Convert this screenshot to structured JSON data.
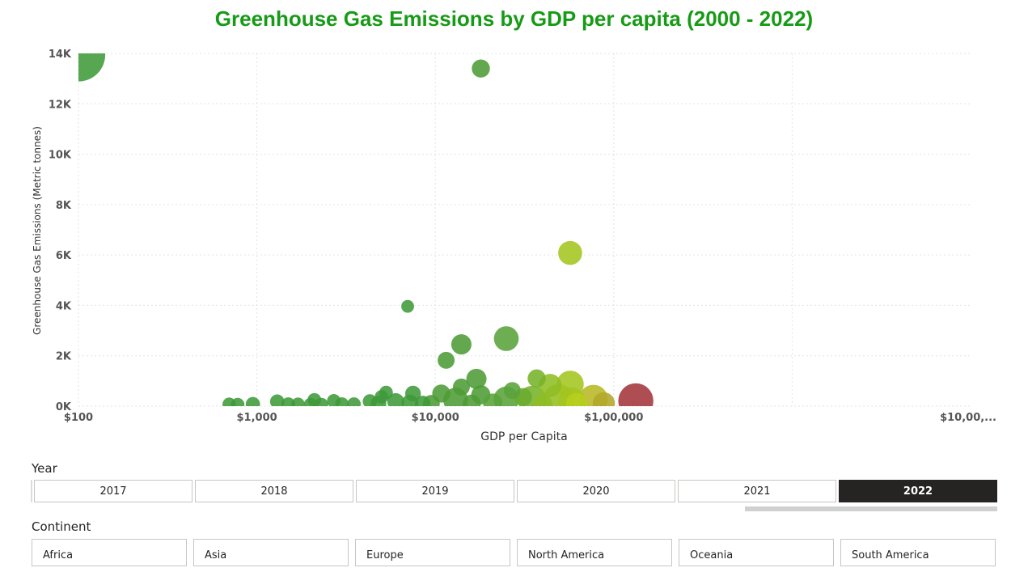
{
  "chart_data": {
    "type": "scatter",
    "title": "Greenhouse Gas Emissions by GDP per capita (2000 - 2022)",
    "xlabel": "GDP per Capita",
    "ylabel": "Greenhouse Gas Emissions (Metric tonnes)",
    "x_scale": "log",
    "xlim": [
      100,
      10000000
    ],
    "ylim": [
      0,
      14000
    ],
    "x_ticks": [
      "$100",
      "$1,000",
      "$10,000",
      "$1,00,000",
      "$10,00,..."
    ],
    "y_ticks": [
      "0K",
      "2K",
      "4K",
      "6K",
      "8K",
      "10K",
      "12K",
      "14K"
    ],
    "grid": true,
    "points": [
      {
        "x": 100,
        "y": 13950,
        "size": 14000,
        "color": "#3f9a3a"
      },
      {
        "x": 18000,
        "y": 13400,
        "size": 1600,
        "color": "#4d9c35"
      },
      {
        "x": 57000,
        "y": 6080,
        "size": 2800,
        "color": "#a4c520"
      },
      {
        "x": 7000,
        "y": 3960,
        "size": 800,
        "color": "#3f9a3a"
      },
      {
        "x": 25000,
        "y": 2680,
        "size": 3000,
        "color": "#5aa33a"
      },
      {
        "x": 14000,
        "y": 2450,
        "size": 2000,
        "color": "#4d9c35"
      },
      {
        "x": 11500,
        "y": 1820,
        "size": 1400,
        "color": "#4d9c35"
      },
      {
        "x": 17000,
        "y": 1080,
        "size": 2000,
        "color": "#4d9c35"
      },
      {
        "x": 37000,
        "y": 1100,
        "size": 1600,
        "color": "#76b32a"
      },
      {
        "x": 57000,
        "y": 870,
        "size": 3600,
        "color": "#a4c520"
      },
      {
        "x": 44000,
        "y": 820,
        "size": 2600,
        "color": "#8fbd25"
      },
      {
        "x": 14000,
        "y": 760,
        "size": 1400,
        "color": "#4d9c35"
      },
      {
        "x": 27000,
        "y": 620,
        "size": 1400,
        "color": "#5aa33a"
      },
      {
        "x": 5300,
        "y": 540,
        "size": 900,
        "color": "#3f9a3a"
      },
      {
        "x": 7500,
        "y": 500,
        "size": 1200,
        "color": "#3f9a3a"
      },
      {
        "x": 10800,
        "y": 500,
        "size": 1600,
        "color": "#4d9c35"
      },
      {
        "x": 18000,
        "y": 450,
        "size": 1800,
        "color": "#4d9c35"
      },
      {
        "x": 5000,
        "y": 370,
        "size": 900,
        "color": "#3f9a3a"
      },
      {
        "x": 31000,
        "y": 360,
        "size": 1600,
        "color": "#6aab2f"
      },
      {
        "x": 77000,
        "y": 280,
        "size": 4000,
        "color": "#b6b824"
      },
      {
        "x": 25000,
        "y": 270,
        "size": 3200,
        "color": "#5aa33a"
      },
      {
        "x": 49000,
        "y": 280,
        "size": 4400,
        "color": "#94c022"
      },
      {
        "x": 35000,
        "y": 240,
        "size": 4000,
        "color": "#76b32a"
      },
      {
        "x": 13000,
        "y": 240,
        "size": 3000,
        "color": "#4d9c35"
      },
      {
        "x": 2100,
        "y": 250,
        "size": 900,
        "color": "#3f9a3a"
      },
      {
        "x": 2700,
        "y": 210,
        "size": 900,
        "color": "#3f9a3a"
      },
      {
        "x": 1300,
        "y": 180,
        "size": 1000,
        "color": "#3f9a3a"
      },
      {
        "x": 4300,
        "y": 190,
        "size": 1000,
        "color": "#3f9a3a"
      },
      {
        "x": 6000,
        "y": 180,
        "size": 1400,
        "color": "#3f9a3a"
      },
      {
        "x": 133000,
        "y": 210,
        "size": 6000,
        "color": "#a3343a"
      },
      {
        "x": 58000,
        "y": 200,
        "size": 3600,
        "color": "#a4c520"
      },
      {
        "x": 88000,
        "y": 110,
        "size": 2400,
        "color": "#b3a62a"
      },
      {
        "x": 62000,
        "y": 110,
        "size": 2200,
        "color": "#b7cf1c"
      },
      {
        "x": 700,
        "y": 70,
        "size": 900,
        "color": "#3f9a3a"
      },
      {
        "x": 780,
        "y": 60,
        "size": 900,
        "color": "#3f9a3a"
      },
      {
        "x": 950,
        "y": 80,
        "size": 1000,
        "color": "#3f9a3a"
      },
      {
        "x": 1500,
        "y": 80,
        "size": 900,
        "color": "#3f9a3a"
      },
      {
        "x": 1700,
        "y": 70,
        "size": 900,
        "color": "#3f9a3a"
      },
      {
        "x": 2000,
        "y": 60,
        "size": 900,
        "color": "#3f9a3a"
      },
      {
        "x": 2300,
        "y": 60,
        "size": 900,
        "color": "#3f9a3a"
      },
      {
        "x": 3000,
        "y": 80,
        "size": 900,
        "color": "#3f9a3a"
      },
      {
        "x": 3500,
        "y": 80,
        "size": 900,
        "color": "#3f9a3a"
      },
      {
        "x": 4800,
        "y": 100,
        "size": 1200,
        "color": "#3f9a3a"
      },
      {
        "x": 7200,
        "y": 120,
        "size": 1400,
        "color": "#3f9a3a"
      },
      {
        "x": 8500,
        "y": 100,
        "size": 1200,
        "color": "#3f9a3a"
      },
      {
        "x": 9500,
        "y": 110,
        "size": 1400,
        "color": "#4d9c35"
      },
      {
        "x": 16000,
        "y": 100,
        "size": 1600,
        "color": "#4d9c35"
      },
      {
        "x": 21000,
        "y": 120,
        "size": 1800,
        "color": "#5aa33a"
      },
      {
        "x": 40000,
        "y": 80,
        "size": 1800,
        "color": "#8fbd25"
      }
    ]
  },
  "slicers": {
    "year": {
      "label": "Year",
      "options": [
        "2017",
        "2018",
        "2019",
        "2020",
        "2021",
        "2022"
      ],
      "selected": "2022"
    },
    "continent": {
      "label": "Continent",
      "options": [
        "Africa",
        "Asia",
        "Europe",
        "North America",
        "Oceania",
        "South America"
      ]
    }
  }
}
